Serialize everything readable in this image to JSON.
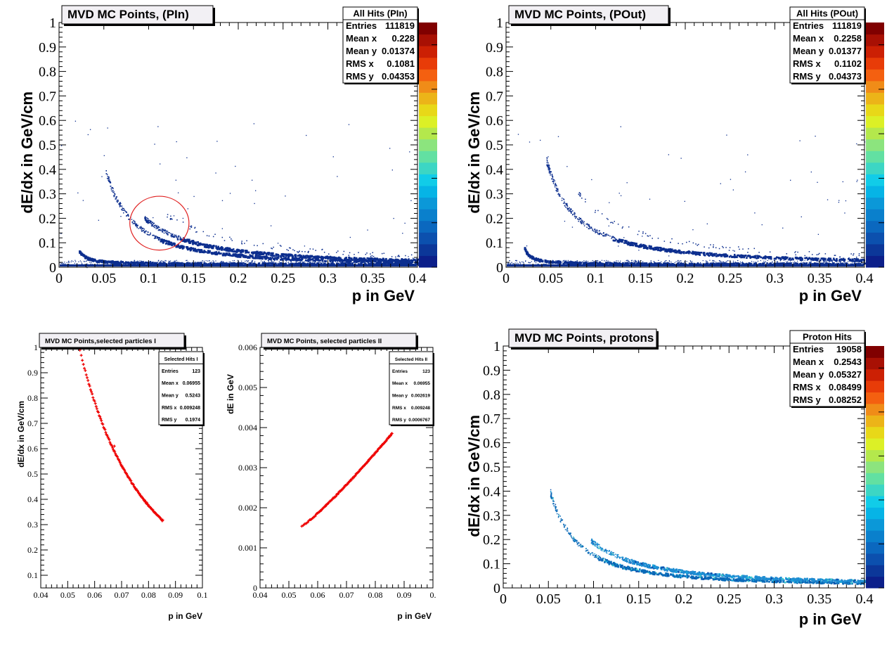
{
  "chart_data": [
    {
      "id": "pin",
      "type": "heatmap",
      "title": "MVD MC Points, (PIn)",
      "xlabel": "p in GeV",
      "ylabel": "dE/dx in GeV/cm",
      "xlim": [
        0,
        0.4
      ],
      "ylim": [
        0,
        1
      ],
      "xticks": [
        "0",
        "0.05",
        "0.1",
        "0.15",
        "0.2",
        "0.25",
        "0.3",
        "0.35",
        "0.4"
      ],
      "yticks": [
        "0",
        "0.1",
        "0.2",
        "0.3",
        "0.4",
        "0.5",
        "0.6",
        "0.7",
        "0.8",
        "0.9",
        "1"
      ],
      "palette": true,
      "annotation": {
        "type": "circle",
        "center": [
          0.112,
          0.18
        ],
        "radius_x": 0.033,
        "radius_y": 0.11,
        "color": "#e02020"
      },
      "stats": {
        "name": "All Hits (PIn)",
        "rows": [
          [
            "Entries",
            "111819"
          ],
          [
            "Mean x",
            "0.228"
          ],
          [
            "Mean y",
            "0.01374"
          ],
          [
            "RMS x",
            "0.1081"
          ],
          [
            "RMS y",
            "0.04353"
          ]
        ]
      },
      "bands": [
        {
          "name": "floor",
          "x": [
            0.0,
            0.4
          ],
          "y": 0.005,
          "kind": "flat"
        },
        {
          "name": "electron-like",
          "p0": 0.022,
          "k": 0.0012,
          "x": [
            0.022,
            0.4
          ],
          "kind": "curve"
        },
        {
          "name": "proton-main",
          "p0": 0.052,
          "k": 0.0025,
          "x": [
            0.052,
            0.4
          ],
          "kind": "curve",
          "pow": 1.7
        },
        {
          "name": "deuteron-like",
          "p0": 0.09,
          "k": 0.0044,
          "x": [
            0.095,
            0.4
          ],
          "kind": "curve",
          "pow": 1.6
        },
        {
          "name": "heavy-sparse",
          "p0": 0.11,
          "k": 0.0085,
          "x": [
            0.12,
            0.4
          ],
          "kind": "sparse",
          "pow": 1.5
        }
      ]
    },
    {
      "id": "pout",
      "type": "heatmap",
      "title": "MVD MC Points, (POut)",
      "xlabel": "p in GeV",
      "ylabel": "dE/dx in GeV/cm",
      "xlim": [
        0,
        0.4
      ],
      "ylim": [
        0,
        1
      ],
      "xticks": [
        "0",
        "0.05",
        "0.1",
        "0.15",
        "0.2",
        "0.25",
        "0.3",
        "0.35",
        "0.4"
      ],
      "yticks": [
        "0",
        "0.1",
        "0.2",
        "0.3",
        "0.4",
        "0.5",
        "0.6",
        "0.7",
        "0.8",
        "0.9",
        "1"
      ],
      "palette": true,
      "stats": {
        "name": "All Hits (POut)",
        "rows": [
          [
            "Entries",
            "111819"
          ],
          [
            "Mean x",
            "0.2258"
          ],
          [
            "Mean y",
            "0.01377"
          ],
          [
            "RMS x",
            "0.1102"
          ],
          [
            "RMS y",
            "0.04373"
          ]
        ]
      },
      "bands": [
        {
          "name": "floor",
          "x": [
            0.0,
            0.4
          ],
          "y": 0.005,
          "kind": "flat"
        },
        {
          "name": "electron-like",
          "p0": 0.02,
          "k": 0.0011,
          "x": [
            0.02,
            0.4
          ],
          "kind": "curve"
        },
        {
          "name": "proton-main",
          "p0": 0.045,
          "k": 0.0055,
          "x": [
            0.045,
            0.4
          ],
          "kind": "curve",
          "pow": 1.4
        },
        {
          "name": "heavy-sparse",
          "p0": 0.07,
          "k": 0.011,
          "x": [
            0.08,
            0.4
          ],
          "kind": "sparse",
          "pow": 1.3
        }
      ]
    },
    {
      "id": "sel1",
      "type": "scatter",
      "title": "MVD MC Points,selected particles I",
      "xlabel": "p in GeV",
      "ylabel": "dE/dx in GeV/cm",
      "xlim": [
        0.04,
        0.1
      ],
      "ylim": [
        0.05,
        1
      ],
      "xticks": [
        "0.04",
        "0.05",
        "0.06",
        "0.07",
        "0.08",
        "0.09",
        "0.1"
      ],
      "yticks": [
        "0.1",
        "0.2",
        "0.3",
        "0.4",
        "0.5",
        "0.6",
        "0.7",
        "0.8",
        "0.9",
        "1"
      ],
      "marker_color": "#ee0000",
      "stats": {
        "name": "Selected Hits I",
        "rows": [
          [
            "Entries",
            "123"
          ],
          [
            "Mean x",
            "0.06955"
          ],
          [
            "Mean y",
            "0.5243"
          ],
          [
            "RMS x",
            "0.009248"
          ],
          [
            "RMS y",
            "0.1974"
          ]
        ]
      },
      "curve": {
        "x_range": [
          0.0545,
          0.0853
        ],
        "y_at_start": 0.99,
        "y_at_end": 0.315
      },
      "outliers": [
        [
          0.0673,
          0.61
        ]
      ]
    },
    {
      "id": "sel2",
      "type": "scatter",
      "title": "MVD MC Points, selected particles II",
      "xlabel": "p in GeV",
      "ylabel": "dE in GeV",
      "xlim": [
        0.04,
        0.1
      ],
      "ylim": [
        0,
        0.006
      ],
      "xticks": [
        "0.04",
        "0.05",
        "0.06",
        "0.07",
        "0.08",
        "0.09",
        "0."
      ],
      "yticks": [
        "0",
        "0.001",
        "0.002",
        "0.003",
        "0.004",
        "0.005",
        "0.006"
      ],
      "marker_color": "#ee0000",
      "stats": {
        "name": "Selected Hits II",
        "rows": [
          [
            "Entries",
            "123"
          ],
          [
            "Mean x",
            "0.06955"
          ],
          [
            "Mean y",
            "0.002619"
          ],
          [
            "RMS x",
            "0.009248"
          ],
          [
            "RMS y",
            "0.0006767"
          ]
        ]
      },
      "curve": {
        "x_range": [
          0.0545,
          0.0858
        ],
        "y_at_start": 0.00155,
        "y_at_end": 0.00385
      }
    },
    {
      "id": "protons",
      "type": "heatmap",
      "title": "MVD MC Points, protons",
      "xlabel": "p in GeV",
      "ylabel": "dE/dx in GeV/cm",
      "xlim": [
        0,
        0.4
      ],
      "ylim": [
        0,
        1
      ],
      "xticks": [
        "0",
        "0.05",
        "0.1",
        "0.15",
        "0.2",
        "0.25",
        "0.3",
        "0.35",
        "0.4"
      ],
      "yticks": [
        "0",
        "0.1",
        "0.2",
        "0.3",
        "0.4",
        "0.5",
        "0.6",
        "0.7",
        "0.8",
        "0.9",
        "1"
      ],
      "palette": true,
      "stats": {
        "name": "Proton Hits",
        "rows": [
          [
            "Entries",
            "19058"
          ],
          [
            "Mean x",
            "0.2543"
          ],
          [
            "Mean y",
            "0.05327"
          ],
          [
            "RMS x",
            "0.08499"
          ],
          [
            "RMS y",
            "0.08252"
          ]
        ]
      },
      "bands": [
        {
          "name": "proton-main",
          "p0": 0.052,
          "k": 0.0025,
          "x": [
            0.052,
            0.4
          ],
          "kind": "curve",
          "pow": 1.7,
          "color": "#0a6ab8"
        },
        {
          "name": "secondary",
          "p0": 0.09,
          "k": 0.0044,
          "x": [
            0.097,
            0.4
          ],
          "kind": "curve",
          "pow": 1.6,
          "color": "#1e8cd2"
        }
      ]
    }
  ],
  "palette_colors": [
    "#0c1f8a",
    "#0c3799",
    "#0c50ae",
    "#0b68bf",
    "#0a80cc",
    "#0b98d8",
    "#06b4e6",
    "#11cce8",
    "#3cd6c4",
    "#62e0a2",
    "#8ce47e",
    "#b4e84c",
    "#dcf026",
    "#e8d818",
    "#ecb418",
    "#f08c18",
    "#f46010",
    "#e83c08",
    "#cc2004",
    "#a81004",
    "#800000"
  ],
  "style": {
    "point_color": "#0c2e8e",
    "frame_color": "#000000",
    "title_box_fill": "#f2f0f4"
  }
}
